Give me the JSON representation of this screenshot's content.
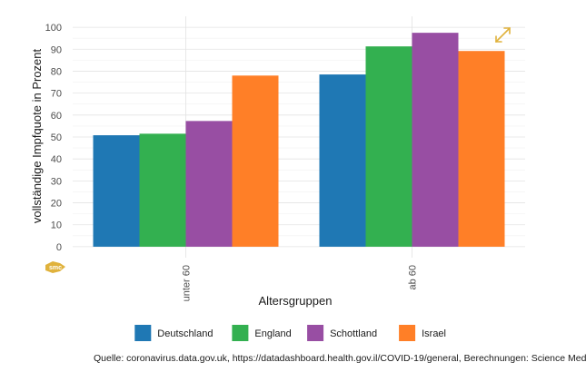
{
  "chart_data": {
    "type": "bar",
    "categories": [
      "unter 60",
      "ab 60"
    ],
    "series": [
      {
        "name": "Deutschland",
        "color": "#1f78b4",
        "values": [
          50.8,
          78.5
        ]
      },
      {
        "name": "England",
        "color": "#33b050",
        "values": [
          51.5,
          91.3
        ]
      },
      {
        "name": "Schottland",
        "color": "#984ea3",
        "values": [
          57.3,
          97.5
        ]
      },
      {
        "name": "Israel",
        "color": "#ff7f27",
        "values": [
          78.0,
          89.2
        ]
      }
    ],
    "yticks": [
      0,
      10,
      20,
      30,
      40,
      50,
      60,
      70,
      80,
      90,
      100
    ],
    "ylim": [
      -5,
      105
    ],
    "xlabel": "Altersgruppen",
    "ylabel": "vollständige Impfquote in Prozent",
    "grid": true,
    "legend_position": "bottom",
    "source": "Quelle: coronavirus.data.gov.uk, https://datadashboard.health.gov.il/COVID-19/general, Berechnungen: Science Media C",
    "logo_text": "smc",
    "expand_icon": "expand-arrows-icon",
    "accent_color": "#e0b23c"
  }
}
